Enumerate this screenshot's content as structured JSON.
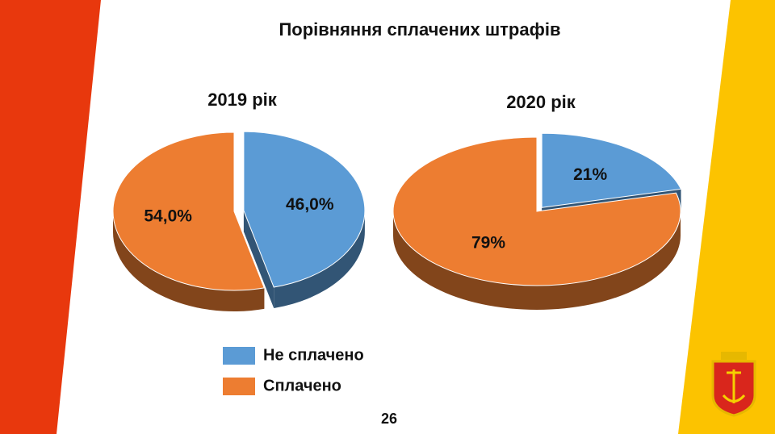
{
  "title": "Порівняння сплачених штрафів",
  "page_number": "26",
  "chart_data": [
    {
      "type": "pie",
      "title": "2019 рік",
      "categories": [
        "Не сплачено",
        "Сплачено"
      ],
      "values": [
        46.0,
        54.0
      ],
      "value_labels": [
        "46,0%",
        "54,0%"
      ],
      "colors": [
        "#5b9bd5",
        "#ed7d31"
      ]
    },
    {
      "type": "pie",
      "title": "2020 рік",
      "categories": [
        "Не сплачено",
        "Сплачено"
      ],
      "values": [
        21,
        79
      ],
      "value_labels": [
        "21%",
        "79%"
      ],
      "colors": [
        "#5b9bd5",
        "#ed7d31"
      ]
    }
  ]
}
